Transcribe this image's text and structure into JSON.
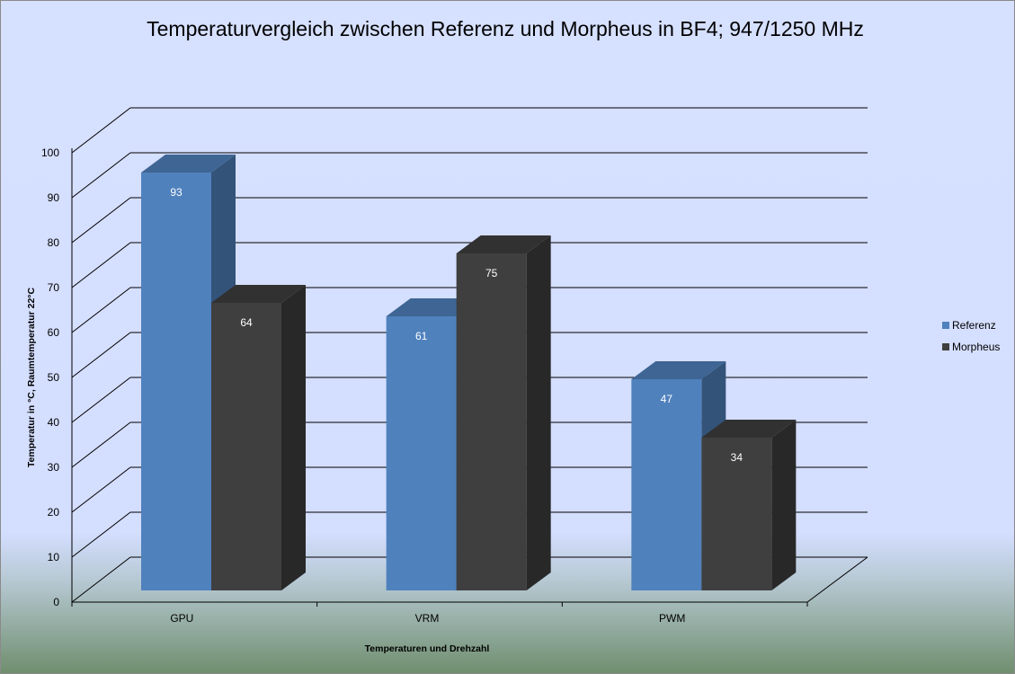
{
  "chart_data": {
    "type": "bar",
    "title": "Temperaturvergleich zwischen Referenz und Morpheus in BF4; 947/1250 MHz",
    "xlabel": "Temperaturen und Drehzahl",
    "ylabel": "Temperatur in °C, Raumtemperatur 22°C",
    "categories": [
      "GPU",
      "VRM",
      "PWM"
    ],
    "ylim": [
      0,
      100
    ],
    "yticks": [
      "0",
      "10",
      "20",
      "30",
      "40",
      "50",
      "60",
      "70",
      "80",
      "90",
      "100"
    ],
    "grid": true,
    "three_d": true,
    "legend_position": "right",
    "series": [
      {
        "name": "Referenz",
        "values": [
          93,
          61,
          47
        ],
        "color": "#4f81bd"
      },
      {
        "name": "Morpheus",
        "values": [
          64,
          75,
          34
        ],
        "color": "#3f3f3f"
      }
    ]
  }
}
